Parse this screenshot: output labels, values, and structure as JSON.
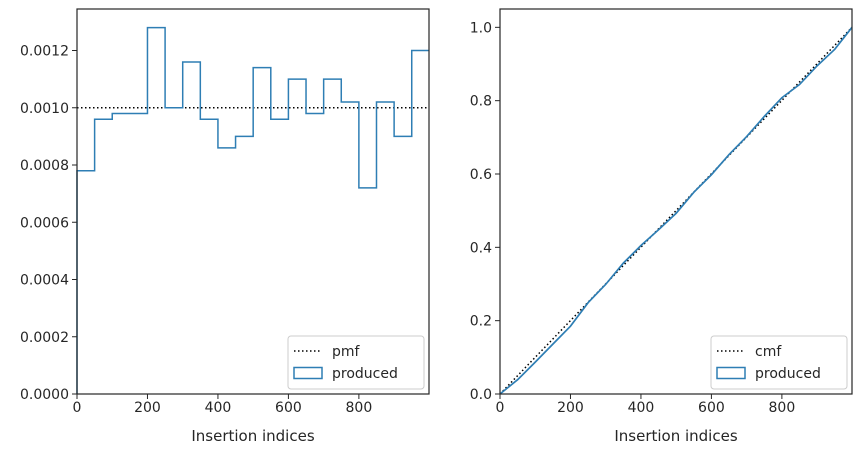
{
  "chart_data": [
    {
      "type": "histogram-step",
      "xlabel": "Insertion indices",
      "ylabel": "",
      "xlim": [
        0,
        999
      ],
      "ylim": [
        0,
        0.001345
      ],
      "xticks": [
        0,
        200,
        400,
        600,
        800
      ],
      "yticks": [
        0,
        0.0002,
        0.0004,
        0.0006,
        0.0008,
        0.001,
        0.0012
      ],
      "ytick_labels": [
        "0.0000",
        "0.0002",
        "0.0004",
        "0.0006",
        "0.0008",
        "0.0010",
        "0.0012"
      ],
      "bin_edges": [
        0,
        50,
        100,
        150,
        200,
        250,
        300,
        350,
        400,
        450,
        500,
        550,
        600,
        650,
        700,
        750,
        800,
        850,
        900,
        950,
        999
      ],
      "series": [
        {
          "name": "pmf",
          "style": "dotted",
          "color": "#000000",
          "x": [
            0,
            999
          ],
          "y": [
            0.001,
            0.001
          ]
        },
        {
          "name": "produced",
          "style": "step",
          "color": "#2e7eb4",
          "values": [
            0.00078,
            0.00096,
            0.00098,
            0.00098,
            0.00128,
            0.001,
            0.00116,
            0.00096,
            0.00086,
            0.0009,
            0.00114,
            0.00096,
            0.0011,
            0.00098,
            0.0011,
            0.00102,
            0.00072,
            0.00102,
            0.0009,
            0.0012
          ]
        }
      ],
      "legend": {
        "position": "bottom-right",
        "entries": [
          "pmf",
          "produced"
        ]
      }
    },
    {
      "type": "line",
      "xlabel": "Insertion indices",
      "ylabel": "",
      "xlim": [
        0,
        999
      ],
      "ylim": [
        0,
        1.05
      ],
      "xticks": [
        0,
        200,
        400,
        600,
        800
      ],
      "yticks": [
        0,
        0.2,
        0.4,
        0.6,
        0.8,
        1.0
      ],
      "ytick_labels": [
        "0.0",
        "0.2",
        "0.4",
        "0.6",
        "0.8",
        "1.0"
      ],
      "series": [
        {
          "name": "cmf",
          "style": "dotted",
          "color": "#000000",
          "x": [
            0,
            999
          ],
          "y": [
            0,
            1.0
          ]
        },
        {
          "name": "produced",
          "style": "solid",
          "color": "#2e7eb4",
          "x": [
            0,
            50,
            100,
            150,
            200,
            250,
            300,
            350,
            400,
            450,
            500,
            550,
            600,
            650,
            700,
            750,
            800,
            850,
            900,
            950,
            999
          ],
          "y": [
            0,
            0.039,
            0.087,
            0.136,
            0.185,
            0.249,
            0.299,
            0.357,
            0.405,
            0.448,
            0.493,
            0.55,
            0.598,
            0.653,
            0.702,
            0.757,
            0.808,
            0.844,
            0.895,
            0.94,
            1.0
          ]
        }
      ],
      "legend": {
        "position": "bottom-right",
        "entries": [
          "cmf",
          "produced"
        ]
      }
    }
  ]
}
